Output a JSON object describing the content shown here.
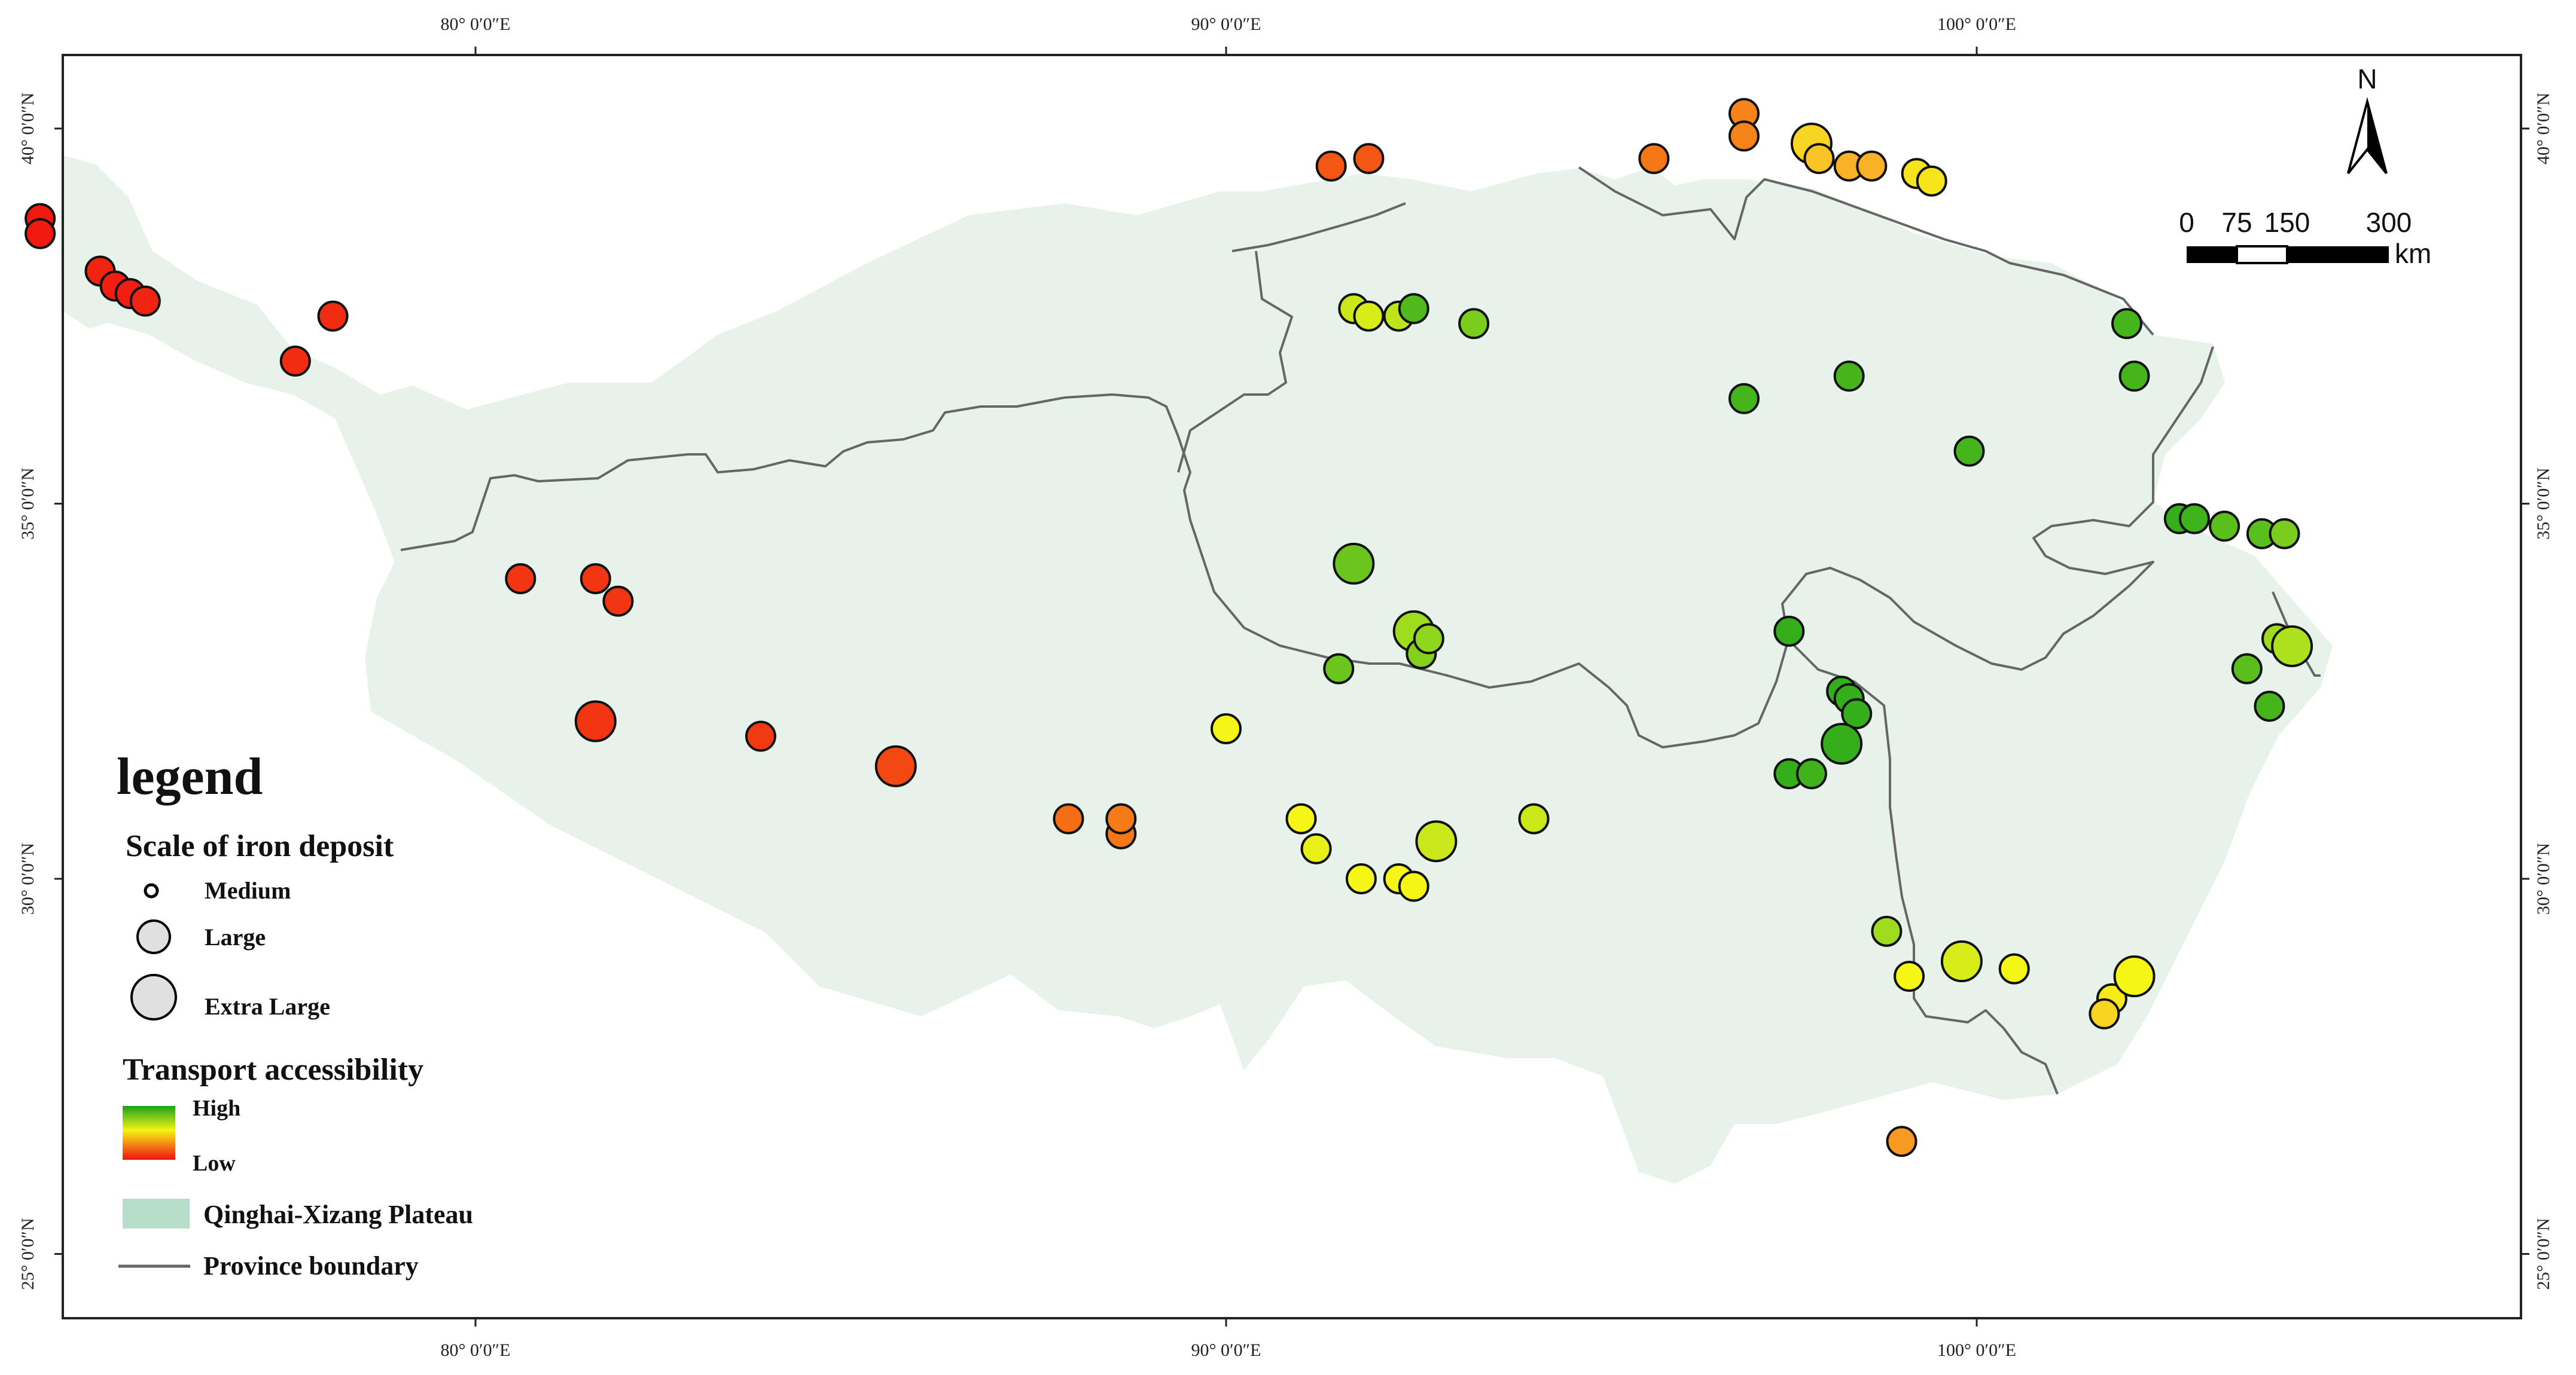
{
  "map": {
    "top_ticks": [
      "80° 0′0″E",
      "90° 0′0″E",
      "100° 0′0″E"
    ],
    "bottom_ticks": [
      "80° 0′0″E",
      "90° 0′0″E",
      "100° 0′0″E"
    ],
    "left_ticks": [
      "40° 0′0″N",
      "35° 0′0″N",
      "30° 0′0″N",
      "25° 0′0″N"
    ],
    "right_ticks": [
      "40° 0′0″N",
      "35° 0′0″N",
      "30° 0′0″N",
      "25° 0′0″N"
    ],
    "north_label": "N",
    "scale": {
      "ticks": [
        "0",
        "75",
        "150",
        "300"
      ],
      "unit": "km"
    },
    "colors": {
      "plateau_fill": "#e6f2ea",
      "boundary": "#666666",
      "high": "#1aa21a",
      "mid": "#f5f516",
      "low": "#f01010"
    }
  },
  "legend": {
    "title": "legend",
    "scale_title": "Scale of iron deposit",
    "scale_items": [
      "Medium",
      "Large",
      "Extra Large"
    ],
    "transport_title": "Transport accessibility",
    "transport_high": "High",
    "transport_low": "Low",
    "plateau_label": "Qinghai-Xizang Plateau",
    "boundary_label": "Province boundary"
  },
  "deposits": [
    {
      "lon": 74.2,
      "lat": 38.8,
      "size": "large",
      "access": 0.02
    },
    {
      "lon": 74.2,
      "lat": 38.6,
      "size": "large",
      "access": 0.02
    },
    {
      "lon": 75.0,
      "lat": 38.1,
      "size": "large",
      "access": 0.04
    },
    {
      "lon": 75.2,
      "lat": 37.9,
      "size": "large",
      "access": 0.03
    },
    {
      "lon": 75.4,
      "lat": 37.8,
      "size": "large",
      "access": 0.03
    },
    {
      "lon": 75.6,
      "lat": 37.7,
      "size": "large",
      "access": 0.04
    },
    {
      "lon": 78.1,
      "lat": 37.5,
      "size": "large",
      "access": 0.06
    },
    {
      "lon": 77.6,
      "lat": 36.9,
      "size": "large",
      "access": 0.06
    },
    {
      "lon": 80.6,
      "lat": 34.0,
      "size": "large",
      "access": 0.08
    },
    {
      "lon": 81.6,
      "lat": 34.0,
      "size": "large",
      "access": 0.08
    },
    {
      "lon": 81.9,
      "lat": 33.7,
      "size": "large",
      "access": 0.08
    },
    {
      "lon": 81.6,
      "lat": 32.1,
      "size": "extra_large",
      "access": 0.08
    },
    {
      "lon": 83.8,
      "lat": 31.9,
      "size": "large",
      "access": 0.09
    },
    {
      "lon": 85.6,
      "lat": 31.5,
      "size": "extra_large",
      "access": 0.12
    },
    {
      "lon": 87.9,
      "lat": 30.8,
      "size": "large",
      "access": 0.2
    },
    {
      "lon": 88.6,
      "lat": 30.6,
      "size": "large",
      "access": 0.22
    },
    {
      "lon": 88.6,
      "lat": 30.8,
      "size": "large",
      "access": 0.23
    },
    {
      "lon": 91.4,
      "lat": 39.5,
      "size": "large",
      "access": 0.15
    },
    {
      "lon": 91.9,
      "lat": 39.6,
      "size": "large",
      "access": 0.15
    },
    {
      "lon": 95.7,
      "lat": 39.6,
      "size": "large",
      "access": 0.22
    },
    {
      "lon": 96.9,
      "lat": 40.2,
      "size": "large",
      "access": 0.25
    },
    {
      "lon": 96.9,
      "lat": 39.9,
      "size": "large",
      "access": 0.25
    },
    {
      "lon": 97.8,
      "lat": 39.8,
      "size": "extra_large",
      "access": 0.45
    },
    {
      "lon": 97.9,
      "lat": 39.6,
      "size": "large",
      "access": 0.4
    },
    {
      "lon": 98.3,
      "lat": 39.5,
      "size": "large",
      "access": 0.35
    },
    {
      "lon": 98.6,
      "lat": 39.5,
      "size": "large",
      "access": 0.35
    },
    {
      "lon": 99.2,
      "lat": 39.4,
      "size": "large",
      "access": 0.5
    },
    {
      "lon": 99.4,
      "lat": 39.3,
      "size": "large",
      "access": 0.5
    },
    {
      "lon": 91.7,
      "lat": 37.6,
      "size": "large",
      "access": 0.65
    },
    {
      "lon": 91.9,
      "lat": 37.5,
      "size": "large",
      "access": 0.62
    },
    {
      "lon": 92.3,
      "lat": 37.5,
      "size": "large",
      "access": 0.68
    },
    {
      "lon": 92.5,
      "lat": 37.6,
      "size": "large",
      "access": 0.9
    },
    {
      "lon": 93.3,
      "lat": 37.4,
      "size": "large",
      "access": 0.82
    },
    {
      "lon": 98.3,
      "lat": 36.7,
      "size": "large",
      "access": 0.92
    },
    {
      "lon": 96.9,
      "lat": 36.4,
      "size": "large",
      "access": 0.92
    },
    {
      "lon": 99.9,
      "lat": 35.7,
      "size": "large",
      "access": 0.92
    },
    {
      "lon": 102.0,
      "lat": 37.4,
      "size": "large",
      "access": 0.92
    },
    {
      "lon": 102.1,
      "lat": 36.7,
      "size": "large",
      "access": 0.92
    },
    {
      "lon": 102.7,
      "lat": 34.8,
      "size": "large",
      "access": 0.95
    },
    {
      "lon": 102.9,
      "lat": 34.8,
      "size": "large",
      "access": 0.93
    },
    {
      "lon": 103.3,
      "lat": 34.7,
      "size": "large",
      "access": 0.88
    },
    {
      "lon": 103.8,
      "lat": 34.6,
      "size": "large",
      "access": 0.88
    },
    {
      "lon": 104.1,
      "lat": 34.6,
      "size": "large",
      "access": 0.82
    },
    {
      "lon": 104.0,
      "lat": 33.2,
      "size": "large",
      "access": 0.75
    },
    {
      "lon": 104.2,
      "lat": 33.1,
      "size": "extra_large",
      "access": 0.72
    },
    {
      "lon": 103.6,
      "lat": 32.8,
      "size": "large",
      "access": 0.88
    },
    {
      "lon": 103.9,
      "lat": 32.3,
      "size": "large",
      "access": 0.92
    },
    {
      "lon": 91.7,
      "lat": 34.2,
      "size": "extra_large",
      "access": 0.85
    },
    {
      "lon": 92.5,
      "lat": 33.3,
      "size": "extra_large",
      "access": 0.75
    },
    {
      "lon": 92.6,
      "lat": 33.0,
      "size": "large",
      "access": 0.8
    },
    {
      "lon": 92.7,
      "lat": 33.2,
      "size": "large",
      "access": 0.78
    },
    {
      "lon": 91.5,
      "lat": 32.8,
      "size": "large",
      "access": 0.85
    },
    {
      "lon": 97.5,
      "lat": 33.3,
      "size": "large",
      "access": 0.95
    },
    {
      "lon": 98.2,
      "lat": 32.5,
      "size": "large",
      "access": 0.95
    },
    {
      "lon": 98.3,
      "lat": 32.4,
      "size": "large",
      "access": 0.95
    },
    {
      "lon": 98.4,
      "lat": 32.2,
      "size": "large",
      "access": 0.95
    },
    {
      "lon": 98.2,
      "lat": 31.8,
      "size": "extra_large",
      "access": 0.95
    },
    {
      "lon": 97.5,
      "lat": 31.4,
      "size": "large",
      "access": 0.95
    },
    {
      "lon": 97.8,
      "lat": 31.4,
      "size": "large",
      "access": 0.93
    },
    {
      "lon": 90.0,
      "lat": 32.0,
      "size": "large",
      "access": 0.55
    },
    {
      "lon": 91.0,
      "lat": 30.8,
      "size": "large",
      "access": 0.55
    },
    {
      "lon": 91.2,
      "lat": 30.4,
      "size": "large",
      "access": 0.58
    },
    {
      "lon": 92.8,
      "lat": 30.5,
      "size": "extra_large",
      "access": 0.65
    },
    {
      "lon": 94.1,
      "lat": 30.8,
      "size": "large",
      "access": 0.65
    },
    {
      "lon": 91.8,
      "lat": 30.0,
      "size": "large",
      "access": 0.55
    },
    {
      "lon": 92.3,
      "lat": 30.0,
      "size": "large",
      "access": 0.55
    },
    {
      "lon": 92.5,
      "lat": 29.9,
      "size": "large",
      "access": 0.55
    },
    {
      "lon": 98.8,
      "lat": 29.3,
      "size": "large",
      "access": 0.75
    },
    {
      "lon": 99.1,
      "lat": 28.7,
      "size": "large",
      "access": 0.55
    },
    {
      "lon": 99.8,
      "lat": 28.9,
      "size": "extra_large",
      "access": 0.62
    },
    {
      "lon": 100.5,
      "lat": 28.8,
      "size": "large",
      "access": 0.55
    },
    {
      "lon": 101.8,
      "lat": 28.4,
      "size": "large",
      "access": 0.52
    },
    {
      "lon": 101.7,
      "lat": 28.2,
      "size": "large",
      "access": 0.45
    },
    {
      "lon": 102.1,
      "lat": 28.7,
      "size": "extra_large",
      "access": 0.55
    },
    {
      "lon": 99.0,
      "lat": 26.5,
      "size": "large",
      "access": 0.3
    }
  ]
}
